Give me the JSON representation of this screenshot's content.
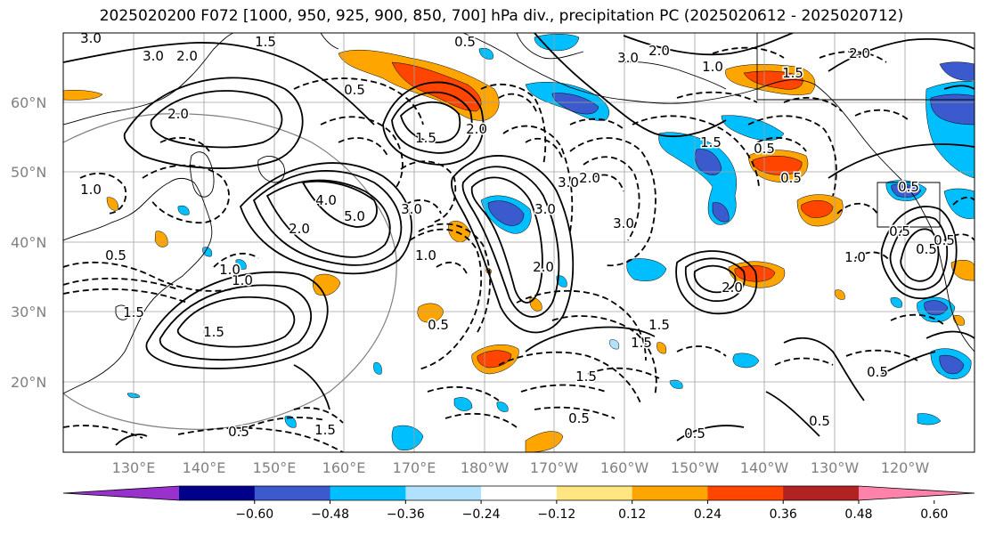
{
  "title": "2025020200 F072 [1000, 950, 925, 900, 850, 700] hPa div., precipitation PC (2025020612 - 2025020712)",
  "lat_labels": [
    "60°N",
    "50°N",
    "40°N",
    "30°N",
    "20°N"
  ],
  "lon_labels": [
    "130°E",
    "140°E",
    "150°E",
    "160°E",
    "170°E",
    "180°W",
    "170°W",
    "160°W",
    "150°W",
    "140°W",
    "130°W",
    "120°W"
  ],
  "colorbar": {
    "ticks": [
      "−0.60",
      "−0.48",
      "−0.36",
      "−0.24",
      "−0.12",
      "0.12",
      "0.24",
      "0.36",
      "0.48",
      "0.60"
    ],
    "colors": [
      "#9932cc",
      "#00008b",
      "#3a5acd",
      "#00bfff",
      "#b0e2ff",
      "#ffffff",
      "#ffe680",
      "#ffa500",
      "#ff4500",
      "#b22222",
      "#ff82ab"
    ]
  },
  "contour_labels": [
    "3.0",
    "3.0",
    "2.0",
    "2.0",
    "1.5",
    "0.5",
    "0.5",
    "1.5",
    "2.0",
    "1.0",
    "5.0",
    "3.0",
    "4.0",
    "2.0",
    "1.0",
    "0.5",
    "1.5",
    "1.0",
    "1.5",
    "3.0",
    "3.0",
    "2.0",
    "3.0",
    "2.0",
    "3.0",
    "2.0",
    "1.0",
    "1.5",
    "0.5",
    "2.0",
    "1.5",
    "0.5",
    "1.0",
    "0.5",
    "0.5",
    "0.5",
    "0.5",
    "1.5",
    "1.5",
    "0.5",
    "0.5",
    "0.5",
    "0.5",
    "0.5",
    "1.5",
    "1.5",
    "1.0",
    "2.0",
    "0.5"
  ]
}
